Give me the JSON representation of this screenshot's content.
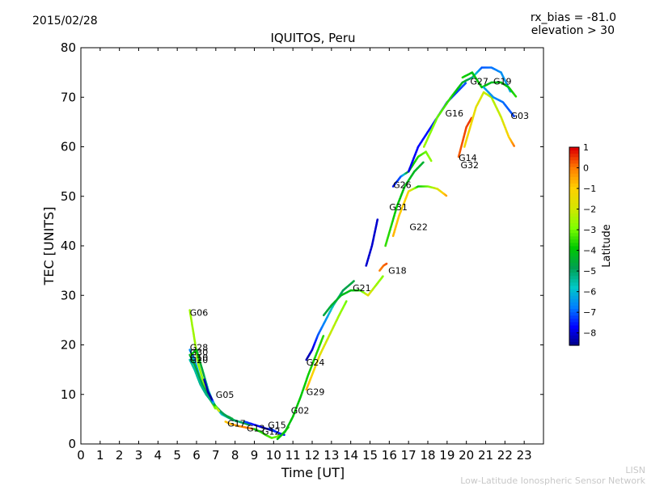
{
  "header": {
    "date": "2015/02/28",
    "rx_bias": "rx_bias = -81.0",
    "elevation": "elevation > 30"
  },
  "footer": {
    "org_short": "LISN",
    "org_long": "Low-Latitude Ionospheric Sensor Network"
  },
  "chart_data": {
    "type": "scatter",
    "title": "IQUITOS, Peru",
    "xlabel": "Time [UT]",
    "ylabel": "TEC [UNITS]",
    "xlim": [
      0,
      24
    ],
    "ylim": [
      0,
      80
    ],
    "xticks": [
      0,
      1,
      2,
      3,
      4,
      5,
      6,
      7,
      8,
      9,
      10,
      11,
      12,
      13,
      14,
      15,
      16,
      17,
      18,
      19,
      20,
      21,
      22,
      23
    ],
    "yticks": [
      0,
      10,
      20,
      30,
      40,
      50,
      60,
      70,
      80
    ],
    "grid": false,
    "colorbar": {
      "label": "Latitude",
      "range": [
        -8.6,
        1.0
      ],
      "ticks": [
        1,
        0,
        -1,
        -2,
        -3,
        -4,
        -5,
        -6,
        -7,
        -8
      ],
      "colormap": [
        "#00007f",
        "#0000ff",
        "#007fff",
        "#00c8c8",
        "#00a050",
        "#00c800",
        "#7fff00",
        "#d4e600",
        "#ffd000",
        "#ff7f00",
        "#e00000"
      ]
    },
    "tracks": [
      {
        "prn": "G06",
        "label_x": 5.65,
        "label_y": 26.5,
        "points": [
          [
            5.65,
            27
          ],
          [
            5.9,
            21
          ],
          [
            6.1,
            16
          ],
          [
            6.4,
            12
          ],
          [
            6.7,
            9
          ],
          [
            7.0,
            7
          ]
        ],
        "lat": [
          -2.5,
          -2.5,
          -2.6,
          -2.6,
          -2.7,
          -2.8
        ]
      },
      {
        "prn": "G28",
        "label_x": 5.65,
        "label_y": 19.5,
        "points": [
          [
            5.65,
            19
          ],
          [
            5.9,
            17
          ],
          [
            6.2,
            13
          ],
          [
            6.5,
            10
          ],
          [
            6.9,
            8
          ],
          [
            7.3,
            6
          ],
          [
            7.8,
            5
          ],
          [
            8.2,
            4.5
          ],
          [
            8.8,
            3.8
          ]
        ],
        "lat": [
          -6.5,
          -6.4,
          -6.3,
          -6.2,
          -6.0,
          -5.8,
          -5.5,
          -5.0,
          -4.5
        ]
      },
      {
        "prn": "G30",
        "label_x": 5.65,
        "label_y": 18.5,
        "points": [
          [
            5.65,
            18
          ],
          [
            5.9,
            16
          ],
          [
            6.3,
            12
          ],
          [
            6.7,
            9
          ],
          [
            7.1,
            7
          ],
          [
            7.6,
            5.5
          ],
          [
            8.1,
            4.5
          ]
        ],
        "lat": [
          -4.5,
          -4.5,
          -4.6,
          -4.6,
          -4.7,
          -4.8,
          -4.9
        ]
      },
      {
        "prn": "G10",
        "label_x": 5.65,
        "label_y": 17.5,
        "points": [
          [
            5.65,
            17
          ],
          [
            5.9,
            15
          ],
          [
            6.2,
            12
          ],
          [
            6.5,
            10
          ],
          [
            6.9,
            8
          ],
          [
            7.4,
            6
          ],
          [
            7.9,
            5
          ]
        ],
        "lat": [
          -5.5,
          -5.4,
          -5.3,
          -5.2,
          -5.0,
          -4.8,
          -4.5
        ]
      },
      {
        "prn": "G20",
        "label_x": 5.65,
        "label_y": 17,
        "points": [
          [
            5.7,
            18
          ],
          [
            6.0,
            19
          ],
          [
            6.3,
            15
          ],
          [
            6.6,
            11
          ],
          [
            6.9,
            8
          ]
        ],
        "lat": [
          -3.5,
          -4.0,
          -4.5,
          -5.5,
          -6.5
        ]
      },
      {
        "prn": "G05",
        "label_x": 7.0,
        "label_y": 10,
        "points": [
          [
            6.4,
            13
          ],
          [
            6.6,
            10.5
          ],
          [
            6.8,
            9
          ],
          [
            7.0,
            7.5
          ],
          [
            7.2,
            6.5
          ]
        ],
        "lat": [
          -8.2,
          -8.3,
          -8.4,
          -3.0,
          -1.5
        ]
      },
      {
        "prn": "G17",
        "label_x": 7.6,
        "label_y": 4.2,
        "points": [
          [
            7.5,
            4.5
          ],
          [
            7.8,
            4
          ],
          [
            8.2,
            3.6
          ],
          [
            8.6,
            3.3
          ],
          [
            9.0,
            3.0
          ]
        ],
        "lat": [
          -0.8,
          -0.5,
          -0.2,
          0.0,
          0.2
        ]
      },
      {
        "prn": "G13",
        "label_x": 8.6,
        "label_y": 3.2,
        "points": [
          [
            8.5,
            4.5
          ],
          [
            8.9,
            4
          ],
          [
            9.3,
            3.5
          ],
          [
            9.7,
            3
          ],
          [
            10.1,
            2.5
          ]
        ],
        "lat": [
          -7.0,
          -7.5,
          -7.8,
          -8.2,
          -8.5
        ]
      },
      {
        "prn": "G12",
        "label_x": 9.4,
        "label_y": 2.5,
        "points": [
          [
            9.0,
            3
          ],
          [
            9.3,
            2.5
          ],
          [
            9.6,
            1.8
          ],
          [
            9.9,
            1.2
          ],
          [
            10.2,
            1.5
          ],
          [
            10.5,
            2.2
          ],
          [
            10.8,
            3.5
          ]
        ],
        "lat": [
          -3.8,
          -3.6,
          -3.4,
          -3.2,
          -3.0,
          -3.2,
          -3.4
        ]
      },
      {
        "prn": "G15",
        "label_x": 9.7,
        "label_y": 3.8,
        "points": [
          [
            9.8,
            3.2
          ],
          [
            10.1,
            2.5
          ],
          [
            10.4,
            2
          ],
          [
            10.6,
            1.8
          ]
        ],
        "lat": [
          -7.2,
          -7.3,
          -7.4,
          -7.5
        ]
      },
      {
        "prn": "G02",
        "label_x": 10.9,
        "label_y": 6.8,
        "points": [
          [
            10.2,
            1
          ],
          [
            10.6,
            2.5
          ],
          [
            11.0,
            5.5
          ],
          [
            11.4,
            9.5
          ],
          [
            11.8,
            14
          ],
          [
            12.2,
            18
          ],
          [
            12.6,
            22
          ]
        ],
        "lat": [
          -4.0,
          -4.0,
          -3.9,
          -3.8,
          -3.7,
          -3.6,
          -3.5
        ]
      },
      {
        "prn": "G29",
        "label_x": 11.7,
        "label_y": 10.5,
        "points": [
          [
            11.7,
            11
          ],
          [
            12.0,
            14
          ],
          [
            12.4,
            18
          ],
          [
            12.9,
            22
          ],
          [
            13.4,
            26
          ],
          [
            13.8,
            29
          ]
        ],
        "lat": [
          -0.5,
          -1.0,
          -1.5,
          -2.0,
          -2.5,
          -3.0
        ]
      },
      {
        "prn": "G24",
        "label_x": 11.7,
        "label_y": 16.5,
        "points": [
          [
            11.7,
            17
          ],
          [
            12.0,
            19
          ],
          [
            12.3,
            22
          ],
          [
            12.7,
            25
          ],
          [
            13.1,
            28
          ],
          [
            13.6,
            31
          ],
          [
            14.2,
            33
          ]
        ],
        "lat": [
          -8.3,
          -8.0,
          -7.0,
          -6.5,
          -5.5,
          -4.8,
          -4.5
        ]
      },
      {
        "prn": "G21",
        "label_x": 14.1,
        "label_y": 31.5,
        "points": [
          [
            12.6,
            26
          ],
          [
            13.0,
            28
          ],
          [
            13.5,
            30
          ],
          [
            14.0,
            31
          ],
          [
            14.5,
            31
          ],
          [
            14.9,
            30
          ],
          [
            15.3,
            32
          ],
          [
            15.7,
            34
          ]
        ],
        "lat": [
          -4.6,
          -4.4,
          -4.2,
          -4.0,
          -3.6,
          -1.5,
          -2.5,
          -2.8
        ]
      },
      {
        "prn": "G18",
        "label_x": 15.95,
        "label_y": 35,
        "points": [
          [
            15.5,
            35
          ],
          [
            15.7,
            36
          ],
          [
            15.9,
            36.5
          ]
        ],
        "lat": [
          0.0,
          0.2,
          0.4
        ]
      },
      {
        "prn": "G31",
        "label_x": 16.0,
        "label_y": 47.8,
        "points": [
          [
            15.8,
            40
          ],
          [
            16.1,
            44
          ],
          [
            16.4,
            48
          ],
          [
            16.8,
            52
          ],
          [
            17.3,
            55
          ],
          [
            17.8,
            57
          ]
        ],
        "lat": [
          -3.4,
          -3.6,
          -3.8,
          -4.0,
          -4.2,
          -4.4
        ]
      },
      {
        "prn": "G26",
        "label_x": 16.2,
        "label_y": 52.3,
        "points": [
          [
            16.2,
            52
          ],
          [
            16.6,
            54
          ],
          [
            17.0,
            55
          ],
          [
            17.5,
            58
          ],
          [
            17.9,
            59
          ],
          [
            18.2,
            57
          ]
        ],
        "lat": [
          -7.5,
          -7.0,
          -4.0,
          -3.5,
          -3.0,
          -2.6
        ]
      },
      {
        "prn": "G22",
        "label_x": 17.05,
        "label_y": 43.8,
        "points": [
          [
            16.2,
            42
          ],
          [
            16.5,
            46
          ],
          [
            17.0,
            51
          ],
          [
            17.5,
            52
          ],
          [
            18.0,
            52
          ],
          [
            18.5,
            51.5
          ],
          [
            19.0,
            50
          ]
        ],
        "lat": [
          -0.6,
          -0.8,
          -1.0,
          -3.8,
          -3.0,
          -1.8,
          -0.3
        ]
      },
      {
        "prn": "G16",
        "label_x": 18.9,
        "label_y": 66.8,
        "points": [
          [
            17.0,
            55
          ],
          [
            17.5,
            60
          ],
          [
            18.0,
            63
          ],
          [
            18.5,
            66
          ],
          [
            19.0,
            69
          ],
          [
            19.5,
            71
          ],
          [
            20.0,
            73
          ]
        ],
        "lat": [
          -7.8,
          -7.6,
          -7.5,
          -7.4,
          -7.3,
          -7.2,
          -7.0
        ]
      },
      {
        "prn": "G14",
        "label_x": 19.6,
        "label_y": 57.8,
        "points": [
          [
            19.6,
            58
          ],
          [
            19.8,
            61
          ],
          [
            20.0,
            64
          ],
          [
            20.3,
            66
          ]
        ],
        "lat": [
          0.3,
          0.4,
          0.5,
          0.6
        ]
      },
      {
        "prn": "G32",
        "label_x": 19.7,
        "label_y": 56.3,
        "points": [
          [
            19.9,
            60
          ],
          [
            20.2,
            64
          ],
          [
            20.5,
            68
          ],
          [
            20.9,
            71
          ],
          [
            21.3,
            70
          ],
          [
            21.8,
            66
          ],
          [
            22.2,
            62
          ],
          [
            22.5,
            60
          ]
        ],
        "lat": [
          -1.2,
          -1.2,
          -1.5,
          -2.0,
          -2.3,
          -2.0,
          -1.0,
          0.2
        ]
      },
      {
        "prn": "G27",
        "label_x": 20.2,
        "label_y": 73.2,
        "points": [
          [
            17.8,
            60
          ],
          [
            18.5,
            66
          ],
          [
            19.2,
            70
          ],
          [
            19.8,
            73
          ],
          [
            20.3,
            74
          ],
          [
            20.8,
            76
          ],
          [
            21.3,
            76
          ],
          [
            21.8,
            75
          ],
          [
            22.3,
            71
          ]
        ],
        "lat": [
          -2.5,
          -3.0,
          -3.5,
          -4.2,
          -5.0,
          -7.0,
          -6.8,
          -6.5,
          -6.2
        ]
      },
      {
        "prn": "G19",
        "label_x": 21.4,
        "label_y": 73.2,
        "points": [
          [
            19.8,
            74
          ],
          [
            20.3,
            75
          ],
          [
            20.8,
            72
          ],
          [
            21.3,
            73
          ],
          [
            21.8,
            73
          ],
          [
            22.2,
            72
          ],
          [
            22.6,
            70
          ]
        ],
        "lat": [
          -3.6,
          -4.0,
          -3.8,
          -4.2,
          -4.0,
          -3.8,
          -3.5
        ]
      },
      {
        "prn": "G03",
        "label_x": 22.3,
        "label_y": 66.3,
        "points": [
          [
            20.9,
            72
          ],
          [
            21.4,
            70
          ],
          [
            21.9,
            69
          ],
          [
            22.3,
            67
          ],
          [
            22.5,
            66
          ]
        ],
        "lat": [
          -6.2,
          -6.5,
          -6.8,
          -7.0,
          -7.2
        ]
      }
    ],
    "isolated_segment": {
      "points": [
        [
          14.8,
          36
        ],
        [
          15.1,
          40
        ],
        [
          15.4,
          45.5
        ]
      ],
      "lat": [
        -8.0,
        -8.0,
        -8.0
      ]
    }
  }
}
